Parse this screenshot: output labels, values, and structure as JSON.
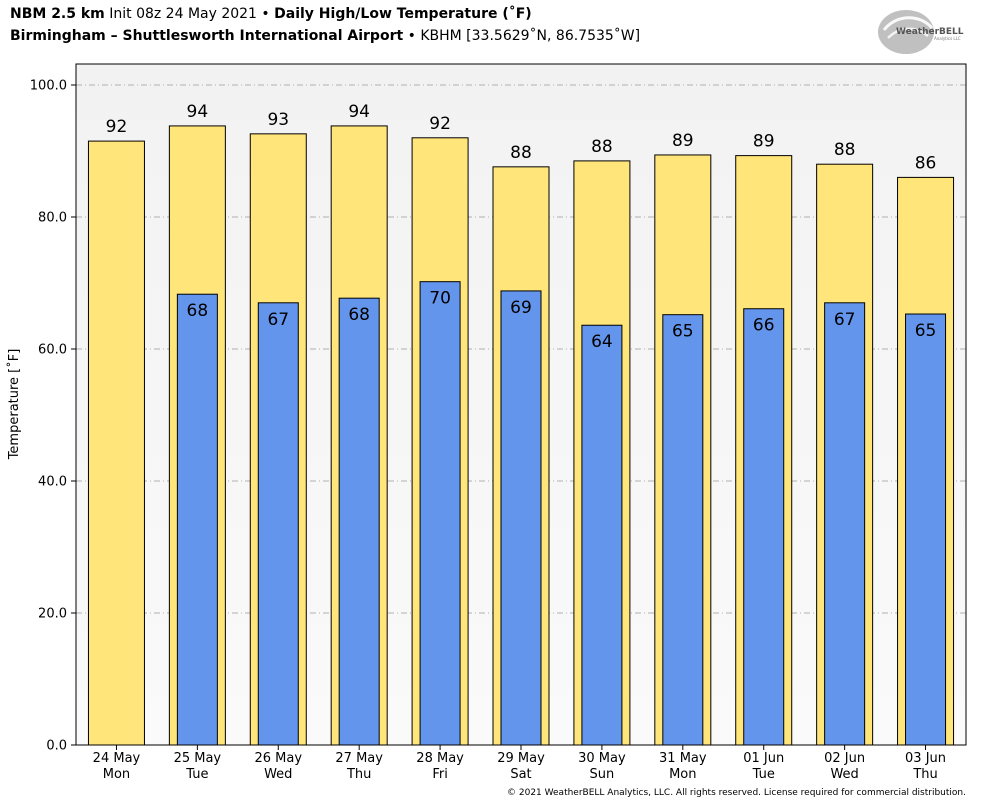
{
  "header": {
    "line1": {
      "model": "NBM 2.5 km",
      "init": "Init 08z 24 May 2021",
      "sep": "•",
      "product": "Daily High/Low Temperature (˚F)"
    },
    "line2": {
      "location": "Birmingham – Shuttlesworth International Airport",
      "sep": "•",
      "station": "KBHM [33.5629˚N, 86.7535˚W]"
    }
  },
  "logo": {
    "text_main": "WeatherBELL",
    "text_sub": "Analytics LLC",
    "icon": "weatherbell-logo"
  },
  "copyright": "© 2021 WeatherBELL Analytics, LLC. All rights reserved. License required for commercial distribution.",
  "colors": {
    "high_bar": "#FFE57A",
    "low_bar": "#6495ED",
    "plot_bg_top": "#F2F2F2",
    "plot_bg_bottom": "#FAFAFA",
    "grid": "#B0B0B0"
  },
  "chart_data": {
    "type": "bar",
    "ylabel": "Temperature [˚F]",
    "ylim": [
      0,
      100
    ],
    "yticks": [
      0,
      20,
      40,
      60,
      80,
      100
    ],
    "ytick_labels": [
      "0.0",
      "20.0",
      "40.0",
      "60.0",
      "80.0",
      "100.0"
    ],
    "grid": true,
    "categories": [
      {
        "date": "24 May",
        "day": "Mon"
      },
      {
        "date": "25 May",
        "day": "Tue"
      },
      {
        "date": "26 May",
        "day": "Wed"
      },
      {
        "date": "27 May",
        "day": "Thu"
      },
      {
        "date": "28 May",
        "day": "Fri"
      },
      {
        "date": "29 May",
        "day": "Sat"
      },
      {
        "date": "30 May",
        "day": "Sun"
      },
      {
        "date": "31 May",
        "day": "Mon"
      },
      {
        "date": "01 Jun",
        "day": "Tue"
      },
      {
        "date": "02 Jun",
        "day": "Wed"
      },
      {
        "date": "03 Jun",
        "day": "Thu"
      }
    ],
    "series": [
      {
        "key": "high",
        "values": [
          91.5,
          93.8,
          92.6,
          93.8,
          92.0,
          87.6,
          88.5,
          89.4,
          89.3,
          88.0,
          86.0
        ],
        "labels": [
          "92",
          "94",
          "93",
          "94",
          "92",
          "88",
          "88",
          "89",
          "89",
          "88",
          "86"
        ]
      },
      {
        "key": "low",
        "values": [
          null,
          68.3,
          67.0,
          67.7,
          70.2,
          68.8,
          63.6,
          65.2,
          66.1,
          67.0,
          65.3
        ],
        "labels": [
          null,
          "68",
          "67",
          "68",
          "70",
          "69",
          "64",
          "65",
          "66",
          "67",
          "65"
        ]
      }
    ]
  }
}
